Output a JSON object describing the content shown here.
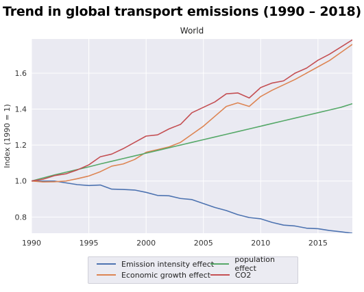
{
  "chart_data": {
    "type": "line",
    "title": "Trend in global transport emissions (1990 – 2018)",
    "subtitle": "World",
    "xlabel": "",
    "ylabel": "Index (1990 = 1)",
    "xlim": [
      1990,
      2018
    ],
    "ylim": [
      0.71,
      1.79
    ],
    "xticks": [
      1990,
      1995,
      2000,
      2005,
      2010,
      2015
    ],
    "yticks": [
      0.8,
      1.0,
      1.2,
      1.4,
      1.6
    ],
    "grid": true,
    "legend_position": "bottom-outside",
    "x": [
      1990,
      1991,
      1992,
      1993,
      1994,
      1995,
      1996,
      1997,
      1998,
      1999,
      2000,
      2001,
      2002,
      2003,
      2004,
      2005,
      2006,
      2007,
      2008,
      2009,
      2010,
      2011,
      2012,
      2013,
      2014,
      2015,
      2016,
      2017,
      2018
    ],
    "series": [
      {
        "name": "Emission intensity effect",
        "color": "#4c72b0",
        "values": [
          1.0,
          1.0,
          1.0,
          0.99,
          0.98,
          0.975,
          0.978,
          0.955,
          0.953,
          0.95,
          0.937,
          0.92,
          0.918,
          0.903,
          0.897,
          0.875,
          0.853,
          0.836,
          0.813,
          0.797,
          0.79,
          0.77,
          0.755,
          0.75,
          0.738,
          0.735,
          0.725,
          0.718,
          0.71
        ]
      },
      {
        "name": "Economic growth effect",
        "color": "#dd8452",
        "values": [
          1.0,
          0.995,
          0.996,
          1.0,
          1.013,
          1.028,
          1.052,
          1.083,
          1.095,
          1.12,
          1.16,
          1.175,
          1.19,
          1.215,
          1.26,
          1.305,
          1.36,
          1.415,
          1.435,
          1.415,
          1.47,
          1.505,
          1.535,
          1.565,
          1.6,
          1.635,
          1.67,
          1.715,
          1.76
        ]
      },
      {
        "name": "population effect",
        "color": "#55a868",
        "values": [
          1.0,
          1.017,
          1.034,
          1.049,
          1.064,
          1.079,
          1.095,
          1.11,
          1.125,
          1.14,
          1.155,
          1.17,
          1.185,
          1.2,
          1.215,
          1.23,
          1.245,
          1.26,
          1.275,
          1.29,
          1.305,
          1.32,
          1.335,
          1.35,
          1.365,
          1.38,
          1.395,
          1.41,
          1.43
        ]
      },
      {
        "name": "CO2",
        "color": "#c44e52",
        "values": [
          1.0,
          1.01,
          1.03,
          1.04,
          1.062,
          1.09,
          1.135,
          1.15,
          1.18,
          1.215,
          1.25,
          1.257,
          1.29,
          1.315,
          1.38,
          1.41,
          1.44,
          1.485,
          1.49,
          1.462,
          1.52,
          1.545,
          1.557,
          1.6,
          1.628,
          1.672,
          1.705,
          1.745,
          1.785
        ]
      }
    ]
  }
}
